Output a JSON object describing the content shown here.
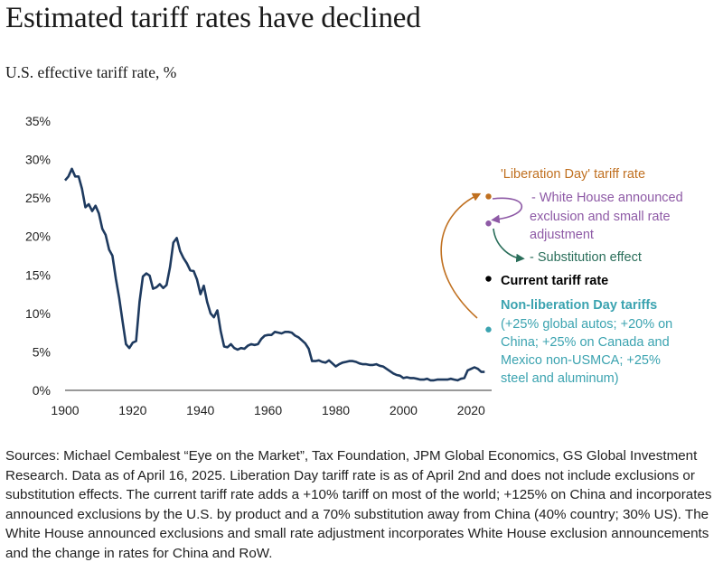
{
  "header": {
    "title": "Estimated tariff rates have declined",
    "subtitle": "U.S. effective tariff rate, %"
  },
  "colors": {
    "line": "#1e3a5f",
    "liberation": "#c07020",
    "white_house": "#8e5aa6",
    "substitution": "#2a6e5a",
    "current": "#000000",
    "non_liberation": "#3ba3b0"
  },
  "annotations": {
    "liberation_label": "'Liberation Day' tariff rate",
    "white_house_lines": [
      "- White House announced",
      "exclusion and small rate",
      "adjustment"
    ],
    "substitution_label": "- Substitution effect",
    "current_label": "Current tariff rate",
    "non_liberation_title": "Non-liberation Day tariffs",
    "non_liberation_lines": [
      "(+25% global autos; +20% on",
      "China; +25% on Canada and",
      "Mexico non-USMCA; +25%",
      "steel and aluminum)"
    ]
  },
  "chart_data": {
    "type": "line",
    "title": "Estimated tariff rates have declined",
    "ylabel": "U.S. effective tariff rate, %",
    "xlim": [
      1900,
      2025
    ],
    "ylim": [
      0,
      35
    ],
    "x_ticks": [
      "1900",
      "1920",
      "1940",
      "1960",
      "1980",
      "2000",
      "2020"
    ],
    "y_ticks": [
      "0%",
      "5%",
      "10%",
      "15%",
      "20%",
      "25%",
      "30%",
      "35%"
    ],
    "grid": false,
    "series": [
      {
        "x": [
          1900,
          1901,
          1902,
          1903,
          1904,
          1905,
          1906,
          1907,
          1908,
          1909,
          1910,
          1911,
          1912,
          1913,
          1914,
          1915,
          1916,
          1917,
          1918,
          1919,
          1920,
          1921,
          1922,
          1923,
          1924,
          1925,
          1926,
          1927,
          1928,
          1929,
          1930,
          1931,
          1932,
          1933,
          1934,
          1935,
          1936,
          1937,
          1938,
          1939,
          1940,
          1941,
          1942,
          1943,
          1944,
          1945,
          1946,
          1947,
          1948,
          1949,
          1950,
          1951,
          1952,
          1953,
          1954,
          1955,
          1956,
          1957,
          1958,
          1959,
          1960,
          1961,
          1962,
          1963,
          1964,
          1965,
          1966,
          1967,
          1968,
          1969,
          1970,
          1971,
          1972,
          1973,
          1974,
          1975,
          1976,
          1977,
          1978,
          1979,
          1980,
          1981,
          1982,
          1983,
          1984,
          1985,
          1986,
          1987,
          1988,
          1989,
          1990,
          1991,
          1992,
          1993,
          1994,
          1995,
          1996,
          1997,
          1998,
          1999,
          2000,
          2001,
          2002,
          2003,
          2004,
          2005,
          2006,
          2007,
          2008,
          2009,
          2010,
          2011,
          2012,
          2013,
          2014,
          2015,
          2016,
          2017,
          2018,
          2019,
          2020,
          2021,
          2022,
          2023,
          2024
        ],
        "values": [
          27.3,
          27.8,
          28.8,
          27.8,
          27.8,
          26.2,
          23.8,
          24.2,
          23.3,
          24.0,
          23.0,
          21.0,
          20.2,
          18.3,
          17.5,
          14.5,
          12.0,
          9.0,
          6.0,
          5.5,
          6.2,
          6.4,
          11.5,
          14.8,
          15.2,
          14.9,
          13.2,
          13.4,
          13.8,
          13.3,
          13.7,
          16.0,
          19.2,
          19.8,
          18.1,
          17.2,
          16.5,
          15.6,
          15.5,
          14.4,
          12.5,
          13.6,
          11.5,
          10.0,
          9.5,
          10.4,
          7.7,
          5.7,
          5.6,
          6.0,
          5.5,
          5.3,
          5.5,
          5.4,
          5.8,
          6.0,
          5.9,
          6.0,
          6.7,
          7.1,
          7.2,
          7.2,
          7.6,
          7.5,
          7.4,
          7.6,
          7.6,
          7.5,
          7.1,
          6.9,
          6.5,
          6.1,
          5.4,
          3.8,
          3.8,
          3.9,
          3.7,
          3.6,
          3.9,
          3.5,
          3.1,
          3.4,
          3.6,
          3.7,
          3.8,
          3.8,
          3.7,
          3.5,
          3.4,
          3.4,
          3.3,
          3.3,
          3.4,
          3.2,
          3.1,
          2.8,
          2.5,
          2.2,
          2.0,
          1.9,
          1.6,
          1.7,
          1.6,
          1.6,
          1.5,
          1.4,
          1.4,
          1.5,
          1.3,
          1.3,
          1.4,
          1.4,
          1.4,
          1.4,
          1.5,
          1.4,
          1.3,
          1.5,
          1.6,
          2.6,
          2.8,
          3.0,
          2.8,
          2.4,
          2.4
        ]
      }
    ],
    "scenario_points": [
      {
        "label": "'Liberation Day' tariff rate",
        "x": 2025,
        "y": 25.2
      },
      {
        "label": "- White House announced exclusion and small rate adjustment",
        "x": 2025,
        "y": 21.7
      },
      {
        "label": "Current tariff rate",
        "x": 2025,
        "y": 14.5
      },
      {
        "label": "Non-liberation Day tariffs",
        "x": 2025,
        "y": 7.9
      }
    ]
  },
  "footer": {
    "sources": "Sources: Michael Cembalest “Eye on the Market”, Tax Foundation, JPM Global Economics, GS Global Investment Research. Data as of April 16, 2025. Liberation Day tariff rate is as of April 2nd and does not include exclusions or substitution effects. The current tariff rate adds a +10% tariff on most of the world; +125% on China and incorporates announced exclusions by the U.S. by product and a 70% substitution away from China (40% country; 30% US). The White House announced exclusions and small rate adjustment incorporates White House exclusion announcements and the change in rates for China and RoW."
  }
}
